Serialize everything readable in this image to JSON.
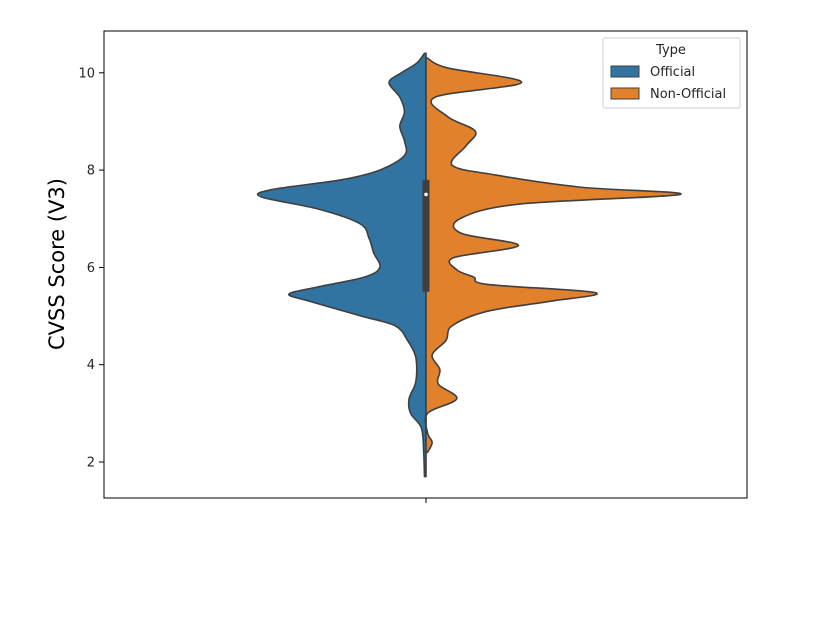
{
  "chart_data": {
    "type": "violin",
    "split": true,
    "title": "",
    "xlabel": "",
    "ylabel": "CVSS Score (V3)",
    "ylim": [
      1.3,
      10.9
    ],
    "yticks": [
      2,
      4,
      6,
      8,
      10
    ],
    "grid": false,
    "legend": {
      "title": "Type",
      "placement": "top-right",
      "entries": [
        {
          "label": "Official",
          "color": "#3274a1"
        },
        {
          "label": "Non-Official",
          "color": "#e1812c"
        }
      ]
    },
    "series": [
      {
        "name": "Official",
        "side": "left",
        "color": "#3274a1",
        "density": [
          [
            1.7,
            0.01
          ],
          [
            2.2,
            0.015
          ],
          [
            2.7,
            0.03
          ],
          [
            3.0,
            0.1
          ],
          [
            3.3,
            0.11
          ],
          [
            3.6,
            0.07
          ],
          [
            3.9,
            0.06
          ],
          [
            4.2,
            0.07
          ],
          [
            4.5,
            0.12
          ],
          [
            4.8,
            0.2
          ],
          [
            5.0,
            0.42
          ],
          [
            5.3,
            0.75
          ],
          [
            5.45,
            0.89
          ],
          [
            5.6,
            0.7
          ],
          [
            5.8,
            0.4
          ],
          [
            6.0,
            0.3
          ],
          [
            6.3,
            0.34
          ],
          [
            6.6,
            0.37
          ],
          [
            6.9,
            0.43
          ],
          [
            7.2,
            0.7
          ],
          [
            7.45,
            1.07
          ],
          [
            7.6,
            1.0
          ],
          [
            7.8,
            0.55
          ],
          [
            8.0,
            0.3
          ],
          [
            8.3,
            0.14
          ],
          [
            8.6,
            0.14
          ],
          [
            8.9,
            0.17
          ],
          [
            9.2,
            0.14
          ],
          [
            9.5,
            0.17
          ],
          [
            9.8,
            0.24
          ],
          [
            10.0,
            0.16
          ],
          [
            10.2,
            0.06
          ],
          [
            10.4,
            0.01
          ]
        ]
      },
      {
        "name": "Non-Official",
        "side": "right",
        "color": "#e1812c",
        "density": [
          [
            2.2,
            0.01
          ],
          [
            2.4,
            0.04
          ],
          [
            2.6,
            0.01
          ],
          [
            3.0,
            0.01
          ],
          [
            3.3,
            0.2
          ],
          [
            3.6,
            0.08
          ],
          [
            3.9,
            0.09
          ],
          [
            4.2,
            0.04
          ],
          [
            4.5,
            0.13
          ],
          [
            4.8,
            0.17
          ],
          [
            5.1,
            0.4
          ],
          [
            5.3,
            0.8
          ],
          [
            5.48,
            1.1
          ],
          [
            5.65,
            0.4
          ],
          [
            5.8,
            0.31
          ],
          [
            5.95,
            0.2
          ],
          [
            6.2,
            0.18
          ],
          [
            6.45,
            0.6
          ],
          [
            6.7,
            0.23
          ],
          [
            7.0,
            0.22
          ],
          [
            7.3,
            0.6
          ],
          [
            7.5,
            1.65
          ],
          [
            7.65,
            1.0
          ],
          [
            7.9,
            0.45
          ],
          [
            8.1,
            0.17
          ],
          [
            8.5,
            0.26
          ],
          [
            8.8,
            0.32
          ],
          [
            9.1,
            0.14
          ],
          [
            9.5,
            0.06
          ],
          [
            9.8,
            0.62
          ],
          [
            10.1,
            0.14
          ],
          [
            10.3,
            0.01
          ]
        ]
      }
    ],
    "inner_box": {
      "q1": 5.5,
      "median": 7.5,
      "q3": 7.8
    }
  }
}
